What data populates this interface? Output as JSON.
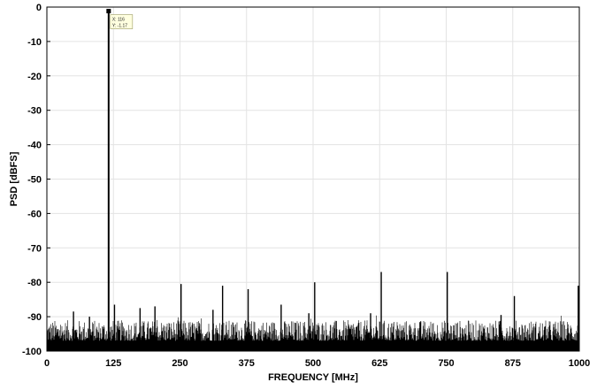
{
  "chart_data": {
    "type": "line",
    "title": "",
    "xlabel": "FREQUENCY [MHz]",
    "ylabel": "PSD [dBFS]",
    "xlim": [
      0,
      1000
    ],
    "ylim": [
      -100,
      0
    ],
    "xticks": [
      0,
      125,
      250,
      375,
      500,
      625,
      750,
      875,
      1000
    ],
    "yticks": [
      0,
      -10,
      -20,
      -30,
      -40,
      -50,
      -60,
      -70,
      -80,
      -90,
      -100
    ],
    "grid": true,
    "colors": {
      "trace": "#000000",
      "grid": "#e3e3e3",
      "datatip_bg": "#ffffe0",
      "datatip_border": "#9a9a60"
    },
    "noise_floor": {
      "range_db": [
        -100,
        -91
      ],
      "mean_db": -93.5,
      "note": "dense spectral noise floor across the full 0-1000 MHz span"
    },
    "series": [
      {
        "values": [
          {
            "x": 116,
            "y": -1.17
          },
          {
            "x": 50,
            "y": -88.5
          },
          {
            "x": 80,
            "y": -90
          },
          {
            "x": 127,
            "y": -86.5
          },
          {
            "x": 175,
            "y": -87.5
          },
          {
            "x": 203,
            "y": -87
          },
          {
            "x": 252,
            "y": -80.5
          },
          {
            "x": 312,
            "y": -88
          },
          {
            "x": 330,
            "y": -81
          },
          {
            "x": 378,
            "y": -82
          },
          {
            "x": 440,
            "y": -86.5
          },
          {
            "x": 492,
            "y": -89
          },
          {
            "x": 503,
            "y": -80
          },
          {
            "x": 608,
            "y": -89
          },
          {
            "x": 628,
            "y": -77
          },
          {
            "x": 752,
            "y": -77
          },
          {
            "x": 853,
            "y": -89.5
          },
          {
            "x": 878,
            "y": -84
          },
          {
            "x": 998,
            "y": -81
          }
        ]
      }
    ],
    "datatip": {
      "x_text": "X: 116",
      "y_text": "Y: -1.17"
    }
  }
}
